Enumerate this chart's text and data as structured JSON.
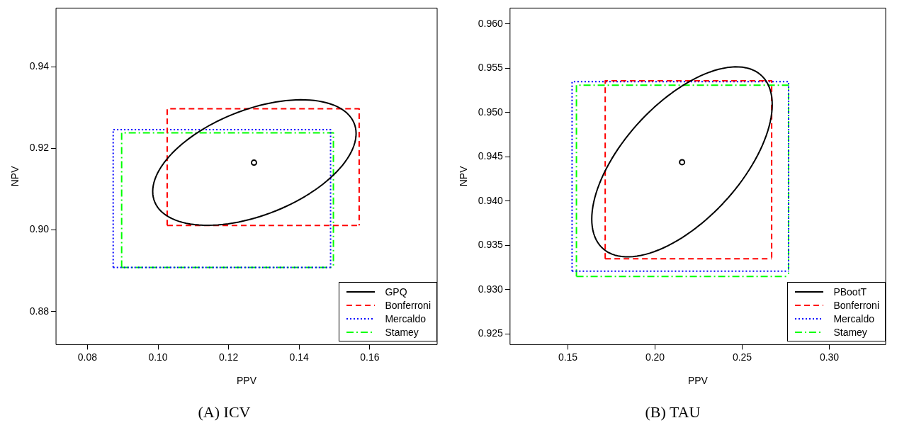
{
  "chart_data": [
    {
      "type": "line",
      "title": "(A) ICV",
      "xlabel": "PPV",
      "ylabel": "NPV",
      "xlim": [
        0.0711,
        0.1791
      ],
      "ylim": [
        0.8719,
        0.9544
      ],
      "xticks": [
        {
          "value": 0.08,
          "label": "0.08"
        },
        {
          "value": 0.1,
          "label": "0.10"
        },
        {
          "value": 0.12,
          "label": "0.12"
        },
        {
          "value": 0.14,
          "label": "0.14"
        },
        {
          "value": 0.16,
          "label": "0.16"
        }
      ],
      "yticks": [
        {
          "value": 0.88,
          "label": "0.88"
        },
        {
          "value": 0.9,
          "label": "0.90"
        },
        {
          "value": 0.92,
          "label": "0.92"
        },
        {
          "value": 0.94,
          "label": "0.94"
        }
      ],
      "grid": false,
      "legend": "bottom right",
      "series": [
        {
          "name": "GPQ",
          "color": "#000000",
          "line_style": "solid"
        },
        {
          "name": "Bonferroni",
          "color": "#ff0000",
          "line_style": "dashed",
          "x": [
            0.1026,
            0.1026,
            0.157,
            0.157
          ],
          "values": [
            0.9011,
            0.9297,
            0.9297,
            0.9011
          ]
        },
        {
          "color": "#ff0000",
          "line_style": "dashed",
          "x": [
            0.1026,
            0.157
          ],
          "values": [
            0.9011,
            0.9011
          ]
        },
        {
          "name": "Mercaldo",
          "color": "#0000ff",
          "line_style": "dotted",
          "x": [
            0.0873,
            0.0873,
            0.1489,
            0.1489
          ],
          "values": [
            0.8908,
            0.9246,
            0.9246,
            0.8908
          ]
        },
        {
          "color": "#0000ff",
          "line_style": "dotted",
          "x": [
            0.0873,
            0.1489
          ],
          "values": [
            0.8908,
            0.8908
          ]
        },
        {
          "name": "Stamey",
          "color": "#00ff00",
          "line_style": "dashdot",
          "x": [
            0.0897,
            0.0897,
            0.1497,
            0.1497
          ],
          "values": [
            0.8908,
            0.9238,
            0.9238,
            0.8908
          ]
        },
        {
          "color": "#00ff00",
          "line_style": "dashdot",
          "x": [
            0.0897,
            0.1497
          ],
          "values": [
            0.8908,
            0.8908
          ]
        },
        {
          "type": "scatter",
          "color": "#000000",
          "marker": "circle",
          "x": [
            0.1272
          ],
          "values": [
            0.9165
          ]
        }
      ]
    },
    {
      "type": "line",
      "title": "(B) TAU",
      "xlabel": "PPV",
      "ylabel": "NPV",
      "xlim": [
        0.1168,
        0.3323
      ],
      "ylim": [
        0.9238,
        0.9618
      ],
      "xticks": [
        {
          "value": 0.15,
          "label": "0.15"
        },
        {
          "value": 0.2,
          "label": "0.20"
        },
        {
          "value": 0.25,
          "label": "0.25"
        },
        {
          "value": 0.3,
          "label": "0.30"
        }
      ],
      "yticks": [
        {
          "value": 0.925,
          "label": "0.925"
        },
        {
          "value": 0.93,
          "label": "0.930"
        },
        {
          "value": 0.935,
          "label": "0.935"
        },
        {
          "value": 0.94,
          "label": "0.940"
        },
        {
          "value": 0.945,
          "label": "0.945"
        },
        {
          "value": 0.95,
          "label": "0.950"
        },
        {
          "value": 0.955,
          "label": "0.955"
        },
        {
          "value": 0.96,
          "label": "0.960"
        }
      ],
      "grid": false,
      "legend": "bottom right",
      "series": [
        {
          "name": "PBootT",
          "color": "#000000",
          "line_style": "solid"
        },
        {
          "name": "Bonferroni",
          "color": "#ff0000",
          "line_style": "dashed",
          "x": [
            0.1714,
            0.1714,
            0.2669,
            0.2669
          ],
          "values": [
            0.9335,
            0.9536,
            0.9536,
            0.9335
          ]
        },
        {
          "color": "#ff0000",
          "line_style": "dashed",
          "x": [
            0.1714,
            0.2669
          ],
          "values": [
            0.9335,
            0.9335
          ]
        },
        {
          "name": "Mercaldo",
          "color": "#0000ff",
          "line_style": "dotted",
          "x": [
            0.1524,
            0.1524,
            0.2766,
            0.2766
          ],
          "values": [
            0.9321,
            0.9535,
            0.9535,
            0.9321
          ]
        },
        {
          "color": "#0000ff",
          "line_style": "dotted",
          "x": [
            0.1524,
            0.2766
          ],
          "values": [
            0.9321,
            0.9321
          ]
        },
        {
          "name": "Stamey",
          "color": "#00ff00",
          "line_style": "dashdot",
          "x": [
            0.1549,
            0.1549,
            0.2766,
            0.2766
          ],
          "values": [
            0.9315,
            0.9531,
            0.9531,
            0.9315
          ]
        },
        {
          "color": "#00ff00",
          "line_style": "dashdot",
          "x": [
            0.1549,
            0.2766
          ],
          "values": [
            0.9315,
            0.9315
          ]
        },
        {
          "type": "scatter",
          "color": "#000000",
          "marker": "circle",
          "x": [
            0.2155
          ],
          "values": [
            0.9444
          ]
        }
      ]
    }
  ]
}
